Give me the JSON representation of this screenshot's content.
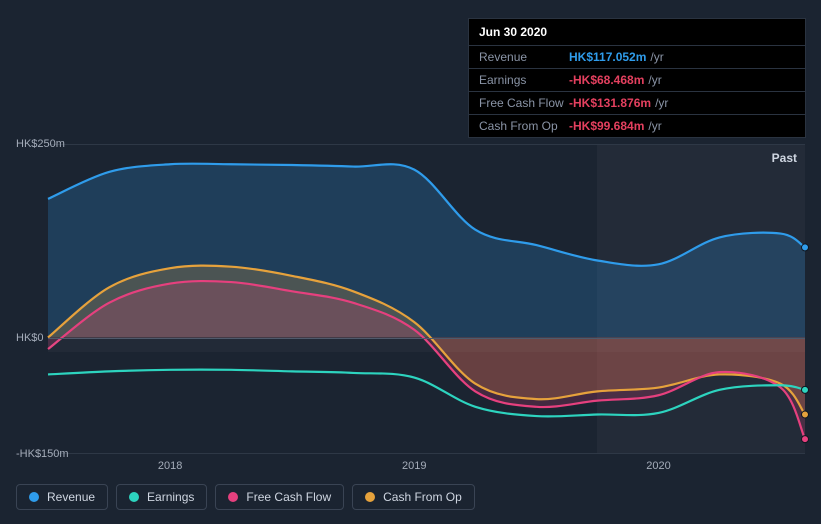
{
  "background_color": "#1b2431",
  "tooltip": {
    "date": "Jun 30 2020",
    "unit": "/yr",
    "rows": [
      {
        "label": "Revenue",
        "value": "HK$117.052m",
        "color": "#2f9ceb"
      },
      {
        "label": "Earnings",
        "value": "-HK$68.468m",
        "color": "#e4405f"
      },
      {
        "label": "Free Cash Flow",
        "value": "-HK$131.876m",
        "color": "#e4405f"
      },
      {
        "label": "Cash From Op",
        "value": "-HK$99.684m",
        "color": "#e4405f"
      }
    ]
  },
  "chart": {
    "type": "area-line",
    "ymin": -150,
    "ymax": 250,
    "yticks": [
      {
        "v": 250,
        "label": "HK$250m"
      },
      {
        "v": 0,
        "label": "HK$0"
      },
      {
        "v": -150,
        "label": "-HK$150m"
      }
    ],
    "xmin": 2017.5,
    "xmax": 2020.6,
    "xticks": [
      {
        "v": 2018,
        "label": "2018"
      },
      {
        "v": 2019,
        "label": "2019"
      },
      {
        "v": 2020,
        "label": "2020"
      }
    ],
    "past_label": "Past",
    "past_shade_from_x": 2019.75,
    "baseline_at": 0,
    "grid_color": "#2e3846",
    "series": [
      {
        "id": "revenue",
        "label": "Revenue",
        "line_color": "#2f9ceb",
        "area_color": "rgba(47,156,235,0.22)",
        "x": [
          2017.5,
          2017.75,
          2018.0,
          2018.25,
          2018.5,
          2018.75,
          2019.0,
          2019.25,
          2019.5,
          2019.75,
          2020.0,
          2020.25,
          2020.5,
          2020.6
        ],
        "y": [
          180,
          215,
          225,
          225,
          224,
          222,
          218,
          140,
          120,
          100,
          95,
          130,
          135,
          117
        ]
      },
      {
        "id": "cash_from_op",
        "label": "Cash From Op",
        "line_color": "#e6a23c",
        "area_color": "rgba(230,162,60,0.22)",
        "x": [
          2017.5,
          2017.75,
          2018.0,
          2018.25,
          2018.5,
          2018.75,
          2019.0,
          2019.25,
          2019.5,
          2019.75,
          2020.0,
          2020.25,
          2020.5,
          2020.6
        ],
        "y": [
          0,
          65,
          90,
          92,
          80,
          60,
          20,
          -60,
          -80,
          -70,
          -65,
          -48,
          -60,
          -100
        ]
      },
      {
        "id": "free_cash_flow",
        "label": "Free Cash Flow",
        "line_color": "#e6407e",
        "area_color": "rgba(230,64,126,0.20)",
        "x": [
          2017.5,
          2017.75,
          2018.0,
          2018.25,
          2018.5,
          2018.75,
          2019.0,
          2019.25,
          2019.5,
          2019.75,
          2020.0,
          2020.25,
          2020.5,
          2020.6
        ],
        "y": [
          -15,
          45,
          70,
          72,
          60,
          45,
          10,
          -70,
          -90,
          -82,
          -75,
          -45,
          -65,
          -132
        ]
      },
      {
        "id": "earnings",
        "label": "Earnings",
        "line_color": "#2dd4bf",
        "area_color": "rgba(45,212,191,0.0)",
        "x": [
          2017.5,
          2017.75,
          2018.0,
          2018.25,
          2018.5,
          2018.75,
          2019.0,
          2019.25,
          2019.5,
          2019.75,
          2020.0,
          2020.25,
          2020.5,
          2020.6
        ],
        "y": [
          -48,
          -44,
          -42,
          -42,
          -44,
          -46,
          -52,
          -90,
          -102,
          -100,
          -98,
          -68,
          -62,
          -68
        ]
      }
    ],
    "legend_order": [
      "revenue",
      "earnings",
      "free_cash_flow",
      "cash_from_op"
    ]
  }
}
